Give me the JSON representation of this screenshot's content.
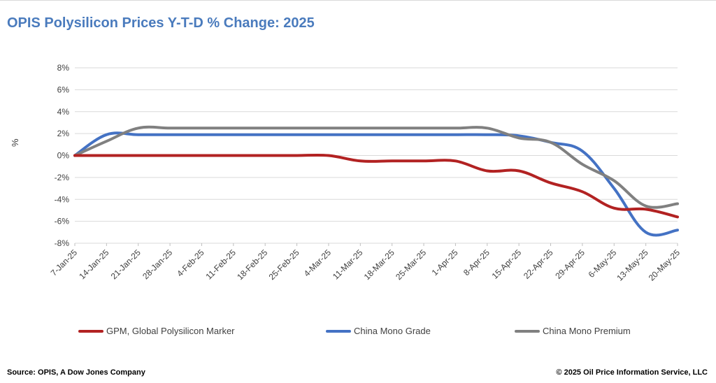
{
  "title": "OPIS Polysilicon Prices Y-T-D % Change: 2025",
  "source": "Source: OPIS, A Dow Jones Company",
  "copyright": "© 2025 Oil Price Information Service, LLC",
  "chart_data": {
    "type": "line",
    "title": "OPIS Polysilicon Prices Y-T-D % Change: 2025",
    "xlabel": "",
    "ylabel": "%",
    "ylim": [
      -8,
      8
    ],
    "yticks": [
      8,
      6,
      4,
      2,
      0,
      -2,
      -4,
      -6,
      -8
    ],
    "ytick_labels": [
      "8%",
      "6%",
      "4%",
      "2%",
      "0%",
      "-2%",
      "-4%",
      "-6%",
      "-8%"
    ],
    "grid": true,
    "legend": "bottom",
    "categories": [
      "7-Jan-25",
      "14-Jan-25",
      "21-Jan-25",
      "28-Jan-25",
      "4-Feb-25",
      "11-Feb-25",
      "18-Feb-25",
      "25-Feb-25",
      "4-Mar-25",
      "11-Mar-25",
      "18-Mar-25",
      "25-Mar-25",
      "1-Apr-25",
      "8-Apr-25",
      "15-Apr-25",
      "22-Apr-25",
      "29-Apr-25",
      "6-May-25",
      "13-May-25",
      "20-May-25"
    ],
    "series": [
      {
        "name": "GPM, Global Polysilicon Marker",
        "color": "#b22222",
        "values": [
          0,
          0,
          0,
          0,
          0,
          0,
          0,
          0,
          0,
          -0.5,
          -0.5,
          -0.5,
          -0.5,
          -1.4,
          -1.4,
          -2.5,
          -3.3,
          -4.8,
          -4.9,
          -5.6
        ]
      },
      {
        "name": "China Mono Grade",
        "color": "#4472c4",
        "values": [
          0,
          1.9,
          1.9,
          1.9,
          1.9,
          1.9,
          1.9,
          1.9,
          1.9,
          1.9,
          1.9,
          1.9,
          1.9,
          1.9,
          1.8,
          1.2,
          0.4,
          -3.0,
          -7.0,
          -6.8
        ]
      },
      {
        "name": "China Mono Premium",
        "color": "#808080",
        "values": [
          0,
          1.3,
          2.5,
          2.5,
          2.5,
          2.5,
          2.5,
          2.5,
          2.5,
          2.5,
          2.5,
          2.5,
          2.5,
          2.5,
          1.6,
          1.2,
          -0.8,
          -2.3,
          -4.6,
          -4.4
        ]
      }
    ]
  }
}
